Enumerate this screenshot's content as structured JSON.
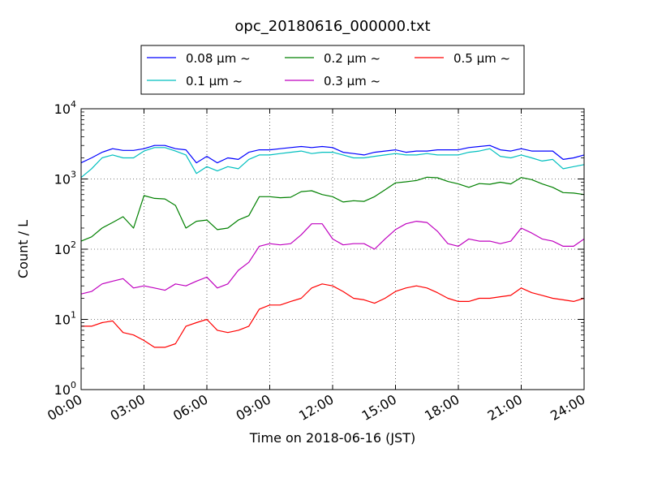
{
  "chart_data": {
    "type": "line",
    "title": "opc_20180616_000000.txt",
    "xlabel": "Time on 2018-06-16 (JST)",
    "ylabel": "Count / L",
    "xlim": [
      0,
      24
    ],
    "ylim": [
      1,
      10000
    ],
    "yscale": "log",
    "grid": true,
    "legend_position": "top-center",
    "x_tick_labels": [
      "00:00",
      "03:00",
      "06:00",
      "09:00",
      "12:00",
      "15:00",
      "18:00",
      "21:00",
      "24:00"
    ],
    "y_tick_labels": [
      {
        "base": "10",
        "exp": "0"
      },
      {
        "base": "10",
        "exp": "1"
      },
      {
        "base": "10",
        "exp": "2"
      },
      {
        "base": "10",
        "exp": "3"
      },
      {
        "base": "10",
        "exp": "4"
      }
    ],
    "x": [
      0,
      0.5,
      1,
      1.5,
      2,
      2.5,
      3,
      3.5,
      4,
      4.5,
      5,
      5.5,
      6,
      6.5,
      7,
      7.5,
      8,
      8.5,
      9,
      9.5,
      10,
      10.5,
      11,
      11.5,
      12,
      12.5,
      13,
      13.5,
      14,
      14.5,
      15,
      15.5,
      16,
      16.5,
      17,
      17.5,
      18,
      18.5,
      19,
      19.5,
      20,
      20.5,
      21,
      21.5,
      22,
      22.5,
      23,
      23.5,
      24
    ],
    "series": [
      {
        "name": "0.08 μm ~",
        "color": "#0000ff",
        "values": [
          1700,
          2000,
          2400,
          2700,
          2550,
          2550,
          2700,
          3000,
          3000,
          2700,
          2600,
          1700,
          2100,
          1700,
          2000,
          1900,
          2400,
          2600,
          2600,
          2700,
          2800,
          2900,
          2800,
          2900,
          2800,
          2400,
          2300,
          2200,
          2400,
          2500,
          2600,
          2400,
          2500,
          2500,
          2600,
          2600,
          2600,
          2800,
          2900,
          3000,
          2600,
          2500,
          2700,
          2500,
          2500,
          2500,
          1900,
          2000,
          2200
        ]
      },
      {
        "name": "0.1 μm ~",
        "color": "#00bfbf",
        "values": [
          1050,
          1400,
          2000,
          2200,
          2000,
          2000,
          2500,
          2800,
          2800,
          2500,
          2200,
          1200,
          1500,
          1300,
          1500,
          1400,
          1900,
          2200,
          2200,
          2300,
          2400,
          2500,
          2300,
          2400,
          2400,
          2200,
          2000,
          2000,
          2100,
          2200,
          2300,
          2200,
          2200,
          2300,
          2200,
          2200,
          2200,
          2400,
          2500,
          2700,
          2100,
          2000,
          2200,
          2000,
          1800,
          1900,
          1400,
          1500,
          1600
        ]
      },
      {
        "name": "0.2 μm ~",
        "color": "#008000",
        "values": [
          130,
          150,
          200,
          240,
          290,
          200,
          580,
          530,
          520,
          420,
          200,
          250,
          260,
          190,
          200,
          260,
          300,
          560,
          560,
          540,
          550,
          660,
          680,
          600,
          560,
          470,
          490,
          480,
          560,
          700,
          880,
          910,
          950,
          1060,
          1040,
          920,
          850,
          760,
          860,
          840,
          900,
          850,
          1050,
          980,
          850,
          760,
          640,
          630,
          600
        ]
      },
      {
        "name": "0.3 μm ~",
        "color": "#bf00bf",
        "values": [
          23,
          25,
          32,
          35,
          38,
          28,
          30,
          28,
          26,
          32,
          30,
          35,
          40,
          28,
          32,
          50,
          65,
          110,
          120,
          115,
          120,
          160,
          230,
          230,
          140,
          115,
          120,
          120,
          100,
          140,
          190,
          230,
          250,
          240,
          180,
          120,
          110,
          140,
          130,
          130,
          120,
          130,
          200,
          170,
          140,
          130,
          110,
          110,
          140
        ]
      },
      {
        "name": "0.5 μm ~",
        "color": "#ff0000",
        "values": [
          8,
          8,
          9,
          9.5,
          6.5,
          6,
          5,
          4,
          4,
          4.5,
          8,
          9,
          10,
          7,
          6.5,
          7,
          8,
          14,
          16,
          16,
          18,
          20,
          28,
          32,
          30,
          25,
          20,
          19,
          17,
          20,
          25,
          28,
          30,
          28,
          24,
          20,
          18,
          18,
          20,
          20,
          21,
          22,
          28,
          24,
          22,
          20,
          19,
          18,
          20
        ]
      }
    ]
  }
}
